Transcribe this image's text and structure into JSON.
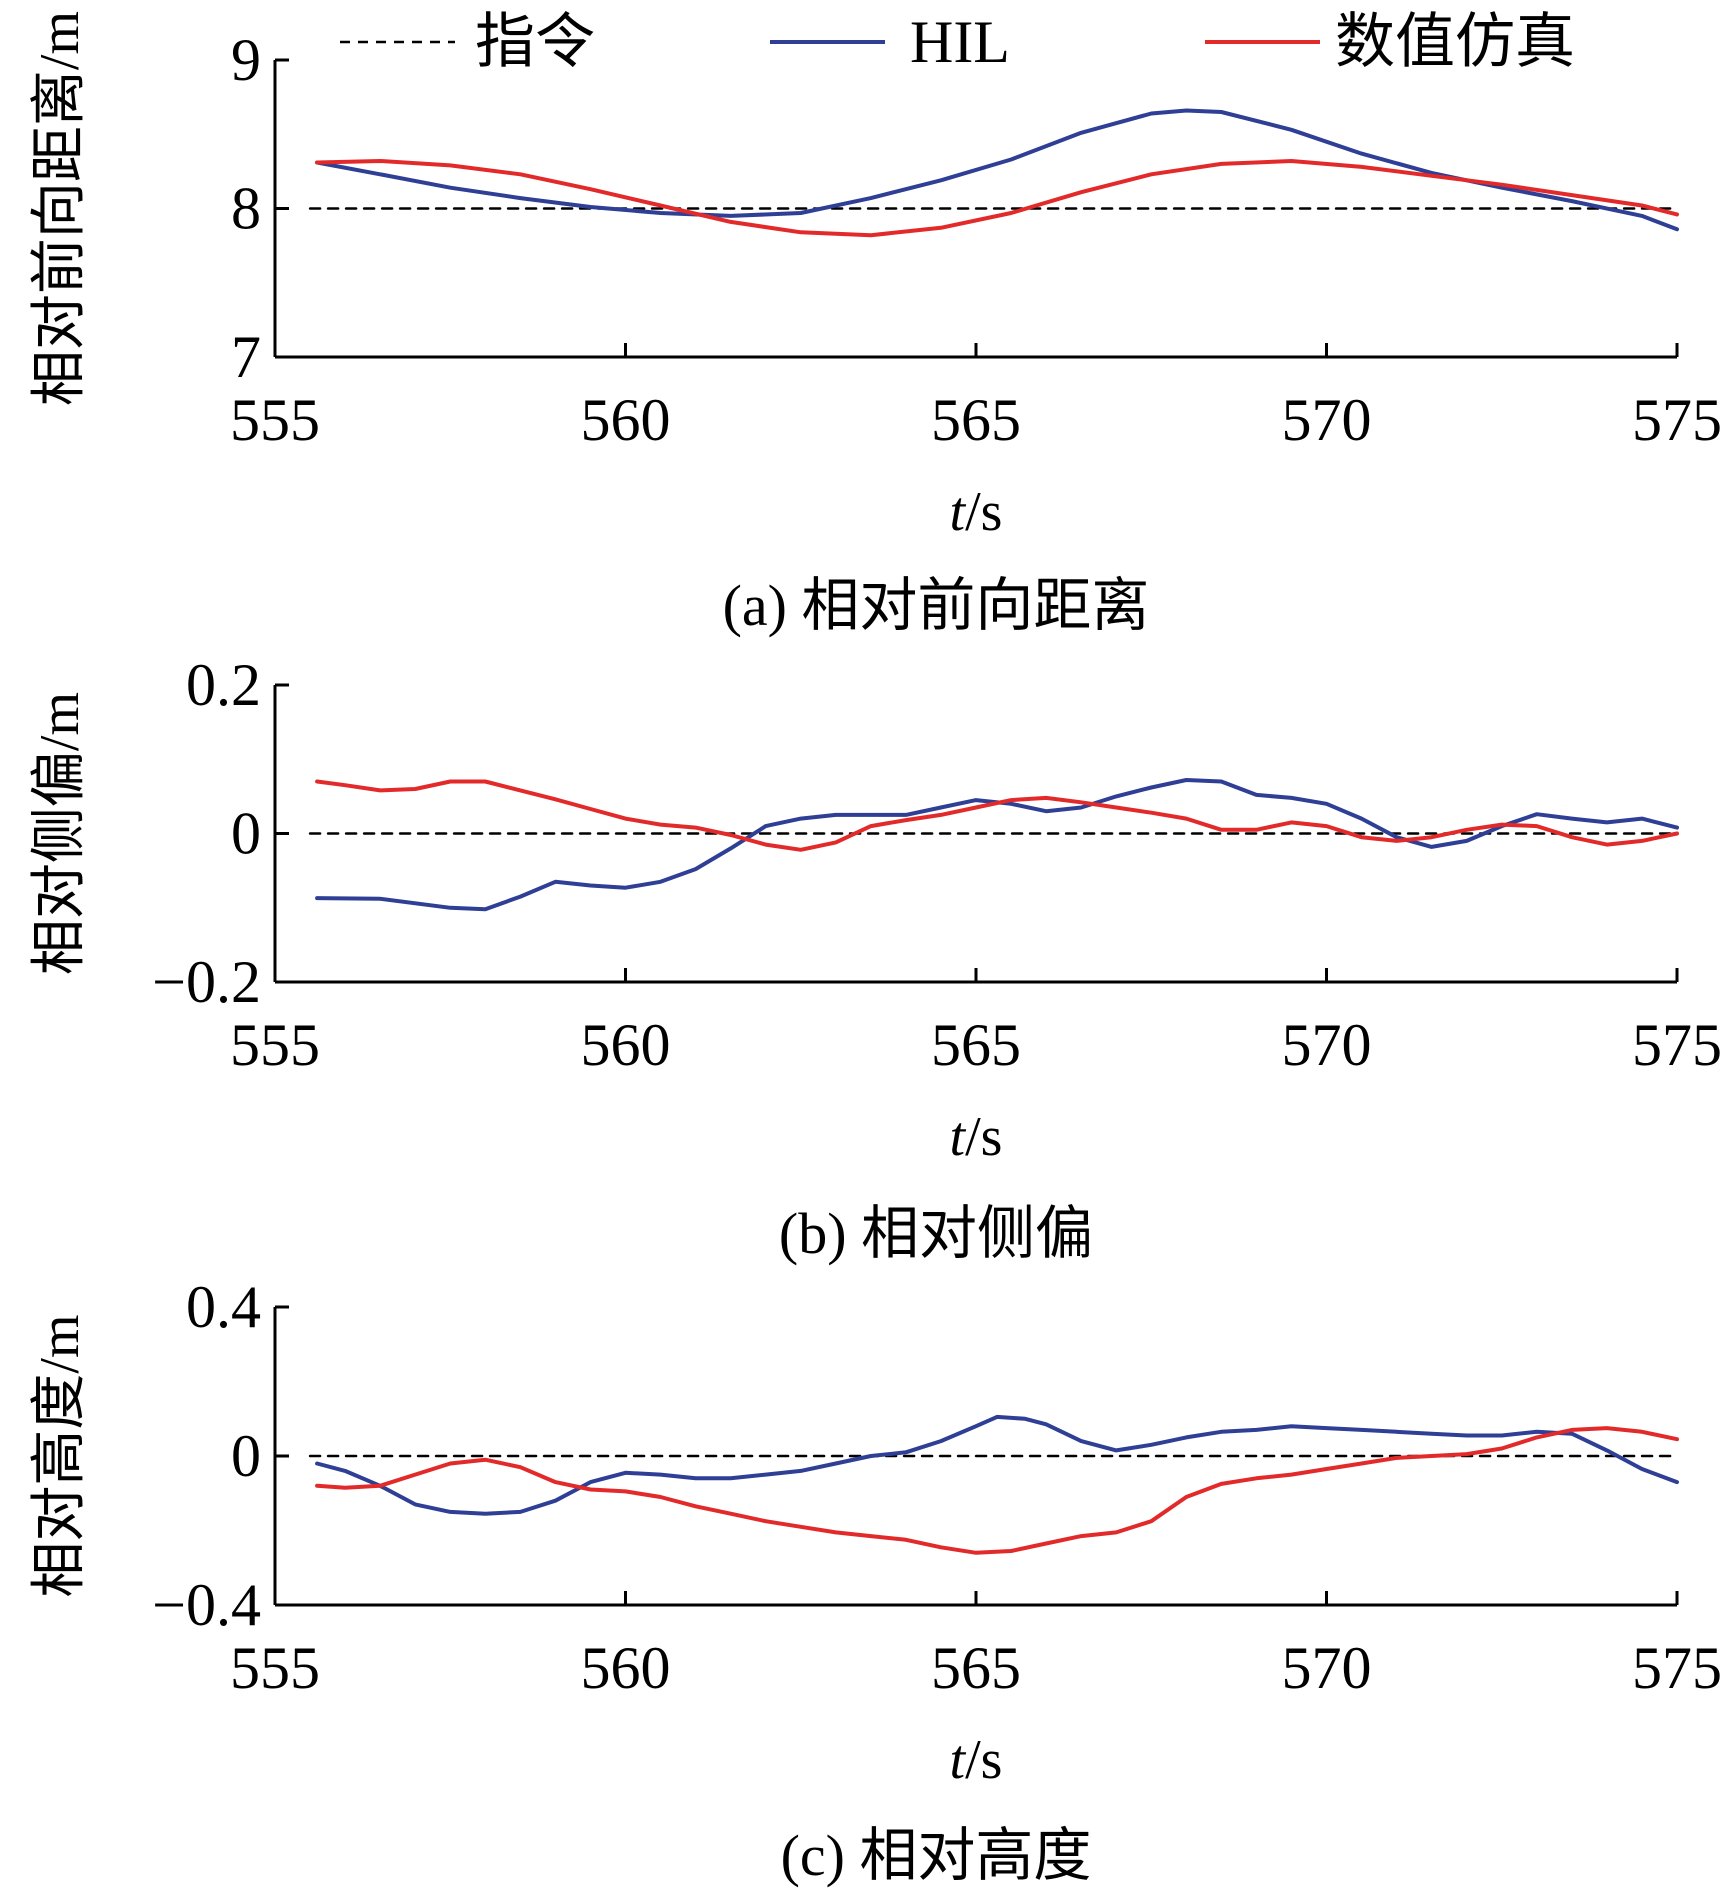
{
  "legend": [
    {
      "name": "指令",
      "color": "#000000",
      "dash": "10,8"
    },
    {
      "name": "HIL",
      "color": "#2e3f95"
    },
    {
      "name": "数值仿真",
      "color": "#e32a2a"
    }
  ],
  "chart_data": [
    {
      "type": "line",
      "caption": "(a) 相对前向距离",
      "xlabel_italic": "t",
      "xlabel_rest": "/s",
      "ylabel": "相对前向距离/m",
      "xlim": [
        555,
        575
      ],
      "ylim": [
        7,
        9
      ],
      "xticks": [
        555,
        560,
        565,
        570,
        575
      ],
      "yticks": [
        7,
        8,
        9
      ],
      "grid": false,
      "series": [
        {
          "name": "指令",
          "x": [
            555.5,
            575
          ],
          "y": [
            8.0,
            8.0
          ]
        },
        {
          "name": "HIL",
          "x": [
            555.6,
            556.5,
            557.5,
            558.5,
            559.5,
            560.5,
            561.5,
            562.5,
            563.5,
            564.5,
            565.5,
            566.5,
            567.5,
            568.0,
            568.5,
            569.5,
            570.5,
            571.5,
            572.5,
            573.5,
            574.5,
            575
          ],
          "y": [
            8.31,
            8.23,
            8.14,
            8.07,
            8.01,
            7.97,
            7.95,
            7.97,
            8.07,
            8.19,
            8.33,
            8.51,
            8.64,
            8.66,
            8.65,
            8.53,
            8.37,
            8.24,
            8.14,
            8.05,
            7.95,
            7.86
          ]
        },
        {
          "name": "数值仿真",
          "x": [
            555.6,
            556.5,
            557.5,
            558.5,
            559.5,
            560.5,
            561.5,
            562.5,
            563.5,
            564.5,
            565.5,
            566.5,
            567.5,
            568.5,
            569.5,
            570.5,
            571.5,
            572.5,
            573.5,
            574.5,
            575
          ],
          "y": [
            8.31,
            8.32,
            8.29,
            8.23,
            8.13,
            8.02,
            7.91,
            7.84,
            7.82,
            7.87,
            7.97,
            8.11,
            8.23,
            8.3,
            8.32,
            8.28,
            8.22,
            8.16,
            8.09,
            8.02,
            7.96
          ]
        }
      ]
    },
    {
      "type": "line",
      "caption": "(b) 相对侧偏",
      "xlabel_italic": "t",
      "xlabel_rest": "/s",
      "ylabel": "相对侧偏/m",
      "xlim": [
        555,
        575
      ],
      "ylim": [
        -0.2,
        0.2
      ],
      "xticks": [
        555,
        560,
        565,
        570,
        575
      ],
      "yticks": [
        -0.2,
        0,
        0.2
      ],
      "ytick_labels": [
        "−0.2",
        "0",
        "0.2"
      ],
      "grid": false,
      "series": [
        {
          "name": "指令",
          "x": [
            555.5,
            575
          ],
          "y": [
            0,
            0
          ]
        },
        {
          "name": "HIL",
          "x": [
            555.6,
            556.5,
            557.5,
            558.0,
            558.5,
            559.0,
            559.5,
            560.0,
            560.5,
            561.0,
            561.5,
            562.0,
            562.5,
            563.0,
            564.0,
            564.5,
            565.0,
            565.5,
            566.0,
            566.5,
            567.0,
            567.5,
            568.0,
            568.5,
            569.0,
            569.5,
            570.0,
            570.5,
            571.0,
            571.5,
            572.0,
            572.5,
            573.0,
            573.5,
            574.0,
            574.5,
            575
          ],
          "y": [
            -0.087,
            -0.088,
            -0.1,
            -0.102,
            -0.085,
            -0.065,
            -0.07,
            -0.073,
            -0.065,
            -0.048,
            -0.02,
            0.01,
            0.02,
            0.025,
            0.025,
            0.035,
            0.045,
            0.04,
            0.03,
            0.035,
            0.05,
            0.062,
            0.072,
            0.07,
            0.052,
            0.048,
            0.04,
            0.02,
            -0.005,
            -0.018,
            -0.01,
            0.01,
            0.026,
            0.02,
            0.015,
            0.02,
            0.008
          ]
        },
        {
          "name": "数值仿真",
          "x": [
            555.6,
            556.0,
            556.5,
            557.0,
            557.5,
            558.0,
            558.5,
            559.0,
            559.5,
            560.0,
            560.5,
            561.0,
            561.5,
            562.0,
            562.5,
            563.0,
            563.5,
            564.0,
            564.5,
            565.0,
            565.5,
            566.0,
            566.5,
            567.0,
            567.5,
            568.0,
            568.5,
            569.0,
            569.5,
            570.0,
            570.5,
            571.0,
            571.5,
            572.0,
            572.5,
            573.0,
            573.5,
            574.0,
            574.5,
            575
          ],
          "y": [
            0.07,
            0.065,
            0.058,
            0.06,
            0.07,
            0.07,
            0.058,
            0.046,
            0.033,
            0.02,
            0.012,
            0.008,
            -0.002,
            -0.015,
            -0.022,
            -0.012,
            0.01,
            0.018,
            0.025,
            0.035,
            0.045,
            0.048,
            0.042,
            0.035,
            0.028,
            0.02,
            0.005,
            0.005,
            0.015,
            0.01,
            -0.005,
            -0.01,
            -0.005,
            0.005,
            0.012,
            0.01,
            -0.005,
            -0.015,
            -0.01,
            0.0
          ]
        }
      ]
    },
    {
      "type": "line",
      "caption": "(c) 相对高度",
      "xlabel_italic": "t",
      "xlabel_rest": "/s",
      "ylabel": "相对高度/m",
      "xlim": [
        555,
        575
      ],
      "ylim": [
        -0.4,
        0.4
      ],
      "xticks": [
        555,
        560,
        565,
        570,
        575
      ],
      "yticks": [
        -0.4,
        0,
        0.4
      ],
      "ytick_labels": [
        "−0.4",
        "0",
        "0.4"
      ],
      "grid": false,
      "series": [
        {
          "name": "指令",
          "x": [
            555.5,
            575
          ],
          "y": [
            0,
            0
          ]
        },
        {
          "name": "HIL",
          "x": [
            555.6,
            556.0,
            556.5,
            557.0,
            557.5,
            558.0,
            558.5,
            559.0,
            559.5,
            560.0,
            560.5,
            561.0,
            561.5,
            562.0,
            562.5,
            563.0,
            563.5,
            564.0,
            564.5,
            565.0,
            565.3,
            565.7,
            566.0,
            566.5,
            567.0,
            567.5,
            568.0,
            568.5,
            569.0,
            569.5,
            570.0,
            570.5,
            571.0,
            571.5,
            572.0,
            572.5,
            573.0,
            573.5,
            574.0,
            574.5,
            575
          ],
          "y": [
            -0.02,
            -0.04,
            -0.08,
            -0.13,
            -0.15,
            -0.155,
            -0.15,
            -0.12,
            -0.07,
            -0.045,
            -0.05,
            -0.06,
            -0.06,
            -0.05,
            -0.04,
            -0.02,
            0.0,
            0.01,
            0.04,
            0.08,
            0.105,
            0.1,
            0.085,
            0.04,
            0.015,
            0.03,
            0.05,
            0.065,
            0.07,
            0.08,
            0.075,
            0.07,
            0.065,
            0.06,
            0.055,
            0.055,
            0.065,
            0.06,
            0.015,
            -0.035,
            -0.07
          ]
        },
        {
          "name": "数值仿真",
          "x": [
            555.6,
            556.0,
            556.5,
            557.0,
            557.5,
            558.0,
            558.5,
            559.0,
            559.5,
            560.0,
            560.5,
            561.0,
            561.5,
            562.0,
            562.5,
            563.0,
            563.5,
            564.0,
            564.5,
            565.0,
            565.5,
            566.0,
            566.5,
            567.0,
            567.5,
            568.0,
            568.5,
            569.0,
            569.5,
            570.0,
            570.5,
            571.0,
            571.5,
            572.0,
            572.5,
            573.0,
            573.5,
            574.0,
            574.5,
            575
          ],
          "y": [
            -0.08,
            -0.085,
            -0.08,
            -0.05,
            -0.02,
            -0.01,
            -0.03,
            -0.07,
            -0.09,
            -0.095,
            -0.11,
            -0.135,
            -0.155,
            -0.175,
            -0.19,
            -0.205,
            -0.215,
            -0.225,
            -0.245,
            -0.26,
            -0.255,
            -0.235,
            -0.215,
            -0.205,
            -0.175,
            -0.11,
            -0.075,
            -0.06,
            -0.05,
            -0.035,
            -0.02,
            -0.005,
            0.0,
            0.005,
            0.02,
            0.05,
            0.07,
            0.075,
            0.065,
            0.045
          ]
        }
      ]
    }
  ]
}
